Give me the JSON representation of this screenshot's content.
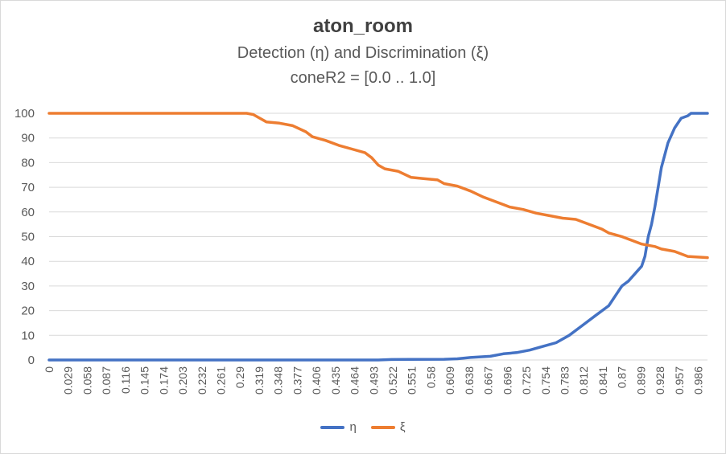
{
  "chart_data": {
    "type": "line",
    "title": "aton_room",
    "subtitle": "Detection (η) and Discrimination (ξ)",
    "subtitle2": "coneR2 = [0.0 .. 1.0]",
    "xlabel": "",
    "ylabel": "",
    "xlim": [
      0,
      1
    ],
    "ylim": [
      0,
      100
    ],
    "yticks": [
      0,
      10,
      20,
      30,
      40,
      50,
      60,
      70,
      80,
      90,
      100
    ],
    "xtick_labels": [
      "0",
      "0.029",
      "0.058",
      "0.087",
      "0.116",
      "0.145",
      "0.174",
      "0.203",
      "0.232",
      "0.261",
      "0.29",
      "0.319",
      "0.348",
      "0.377",
      "0.406",
      "0.435",
      "0.464",
      "0.493",
      "0.522",
      "0.551",
      "0.58",
      "0.609",
      "0.638",
      "0.667",
      "0.696",
      "0.725",
      "0.754",
      "0.783",
      "0.812",
      "0.841",
      "0.87",
      "0.899",
      "0.928",
      "0.957",
      "0.986"
    ],
    "xtick_step": 0.029,
    "grid": "horizontal",
    "legend_position": "bottom",
    "series": [
      {
        "name": "η",
        "color": "#4472c4",
        "points": [
          [
            0,
            0
          ],
          [
            0.5,
            0
          ],
          [
            0.52,
            0.2
          ],
          [
            0.6,
            0.3
          ],
          [
            0.62,
            0.5
          ],
          [
            0.64,
            1
          ],
          [
            0.67,
            1.5
          ],
          [
            0.69,
            2.5
          ],
          [
            0.71,
            3
          ],
          [
            0.73,
            4
          ],
          [
            0.75,
            5.5
          ],
          [
            0.77,
            7
          ],
          [
            0.79,
            10
          ],
          [
            0.81,
            14
          ],
          [
            0.83,
            18
          ],
          [
            0.85,
            22
          ],
          [
            0.86,
            26
          ],
          [
            0.87,
            30
          ],
          [
            0.88,
            32
          ],
          [
            0.89,
            35
          ],
          [
            0.9,
            38
          ],
          [
            0.905,
            42
          ],
          [
            0.91,
            50
          ],
          [
            0.915,
            55
          ],
          [
            0.92,
            62
          ],
          [
            0.925,
            70
          ],
          [
            0.93,
            78
          ],
          [
            0.935,
            83
          ],
          [
            0.94,
            88
          ],
          [
            0.95,
            94
          ],
          [
            0.96,
            98
          ],
          [
            0.97,
            99
          ],
          [
            0.975,
            100
          ],
          [
            1.0,
            100
          ]
        ]
      },
      {
        "name": "ξ",
        "color": "#ed7d31",
        "points": [
          [
            0,
            100
          ],
          [
            0.3,
            100
          ],
          [
            0.31,
            99.5
          ],
          [
            0.32,
            98
          ],
          [
            0.33,
            96.5
          ],
          [
            0.35,
            96
          ],
          [
            0.37,
            95
          ],
          [
            0.39,
            92.5
          ],
          [
            0.4,
            90.5
          ],
          [
            0.42,
            89
          ],
          [
            0.44,
            87
          ],
          [
            0.46,
            85.5
          ],
          [
            0.48,
            84
          ],
          [
            0.49,
            82
          ],
          [
            0.5,
            79
          ],
          [
            0.51,
            77.5
          ],
          [
            0.53,
            76.5
          ],
          [
            0.55,
            74
          ],
          [
            0.57,
            73.5
          ],
          [
            0.59,
            73
          ],
          [
            0.6,
            71.5
          ],
          [
            0.62,
            70.5
          ],
          [
            0.64,
            68.5
          ],
          [
            0.66,
            66
          ],
          [
            0.68,
            64
          ],
          [
            0.7,
            62
          ],
          [
            0.72,
            61
          ],
          [
            0.74,
            59.5
          ],
          [
            0.76,
            58.5
          ],
          [
            0.78,
            57.5
          ],
          [
            0.8,
            57
          ],
          [
            0.82,
            55
          ],
          [
            0.84,
            53
          ],
          [
            0.85,
            51.5
          ],
          [
            0.87,
            50
          ],
          [
            0.89,
            48
          ],
          [
            0.9,
            47
          ],
          [
            0.92,
            46
          ],
          [
            0.93,
            45
          ],
          [
            0.95,
            44
          ],
          [
            0.97,
            42
          ],
          [
            1.0,
            41.5
          ]
        ]
      }
    ]
  }
}
